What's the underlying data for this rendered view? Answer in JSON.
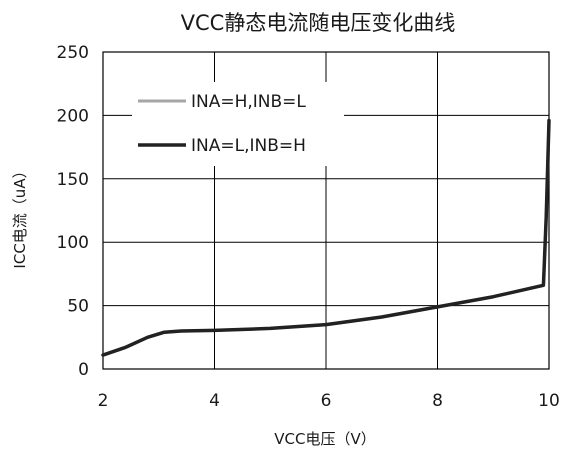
{
  "chart_data": {
    "type": "line",
    "title": "VCC静态电流随电压变化曲线",
    "xlabel": "VCC电压（V）",
    "ylabel": "ICC电流（uA）",
    "xlim": [
      2,
      10
    ],
    "ylim": [
      0,
      250
    ],
    "xticks": [
      2,
      4,
      6,
      8,
      10
    ],
    "yticks": [
      0,
      50,
      100,
      150,
      200,
      250
    ],
    "grid": true,
    "legend_position": "top-left",
    "series": [
      {
        "name": "INA=H,INB=L",
        "color": "#a6a6a6",
        "x": [
          2.0,
          2.4,
          2.8,
          3.1,
          3.4,
          4.0,
          5.0,
          6.0,
          7.0,
          8.0,
          9.0,
          9.8,
          9.9,
          9.95,
          10.0
        ],
        "y": [
          11,
          17,
          25,
          29,
          30,
          30.5,
          32,
          35,
          41,
          49,
          57,
          65,
          66,
          120,
          196
        ]
      },
      {
        "name": "INA=L,INB=H",
        "color": "#222222",
        "x": [
          2.0,
          2.4,
          2.8,
          3.1,
          3.4,
          4.0,
          5.0,
          6.0,
          7.0,
          8.0,
          9.0,
          9.8,
          9.9,
          9.95,
          10.0
        ],
        "y": [
          11,
          17,
          25,
          29,
          30,
          30.5,
          32,
          35,
          41,
          49,
          57,
          65,
          66,
          120,
          196
        ]
      }
    ]
  }
}
